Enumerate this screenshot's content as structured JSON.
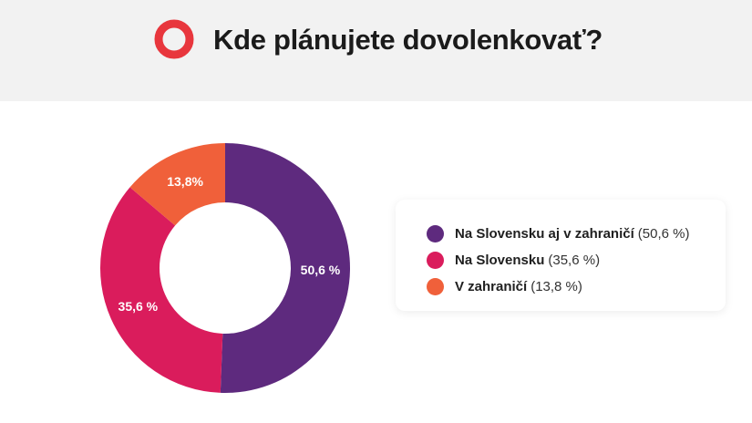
{
  "header": {
    "title": "Kde plánujete dovolenkovať?",
    "logo_icon": "ring-logo-icon",
    "logo_color": "#e8363d"
  },
  "chart_data": {
    "type": "pie",
    "categories": [
      "Na Slovensku aj v zahraničí",
      "Na Slovensku",
      "V zahraničí"
    ],
    "values": [
      50.6,
      35.6,
      13.8
    ],
    "data_labels": [
      "50,6 %",
      "35,6 %",
      "13,8%"
    ],
    "colors": [
      "#5e2a7e",
      "#da1c5c",
      "#f0603a"
    ],
    "donut": true,
    "legend_placement": "right"
  },
  "legend": {
    "items": [
      {
        "label": "Na Slovensku aj v zahraničí",
        "value": "(50,6 %)",
        "color": "#5e2a7e"
      },
      {
        "label": "Na Slovensku",
        "value": "(35,6 %)",
        "color": "#da1c5c"
      },
      {
        "label": "V zahraničí",
        "value": "(13,8 %)",
        "color": "#f0603a"
      }
    ]
  }
}
